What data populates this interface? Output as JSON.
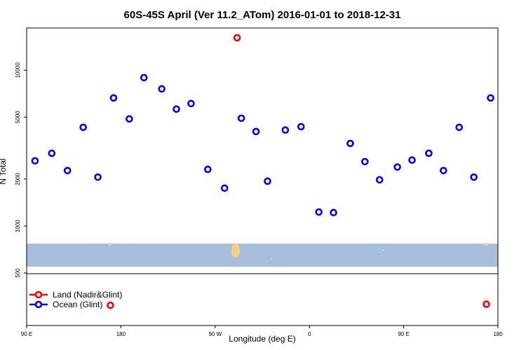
{
  "chart_data": {
    "type": "scatter",
    "title": "60S-45S April (Ver 11.2_ATom)   2016-01-01 to 2018-12-31",
    "x_label": "Longitude (deg E)",
    "y_label": "N Total",
    "log_y": true,
    "legend": "bottomleft",
    "xlim": [
      90,
      540
    ],
    "ylim": [
      230,
      18660
    ],
    "xticks": [
      {
        "value": 90,
        "label": "90 E"
      },
      {
        "value": 180,
        "label": "180"
      },
      {
        "value": 270,
        "label": "90 W"
      },
      {
        "value": 360,
        "label": "0"
      },
      {
        "value": 450,
        "label": "90 E"
      },
      {
        "value": 540,
        "label": "180"
      }
    ],
    "yticks": [
      500,
      1000,
      2000,
      5000,
      10000
    ],
    "series": [
      {
        "name": "Land (Nadir&Glint)",
        "color": "#ff0000",
        "x": [
          291,
          170,
          529
        ],
        "values": [
          16150,
          310,
          315
        ]
      },
      {
        "name": "Ocean (Glint)",
        "color": "#0000ff",
        "x": [
          98,
          114,
          129,
          144,
          158,
          173,
          188,
          202,
          219,
          233,
          247,
          263,
          279,
          295,
          309,
          320,
          337,
          352,
          369,
          383,
          399,
          413,
          427,
          444,
          458,
          474,
          488,
          503,
          517,
          533
        ],
        "values": [
          2620,
          2930,
          2270,
          4300,
          2060,
          6640,
          4870,
          8960,
          7590,
          5630,
          6110,
          2310,
          1750,
          4920,
          4040,
          1940,
          4130,
          4340,
          1230,
          1220,
          3390,
          2590,
          1980,
          2390,
          2650,
          2930,
          2270,
          4300,
          2060,
          6640
        ]
      }
    ]
  }
}
